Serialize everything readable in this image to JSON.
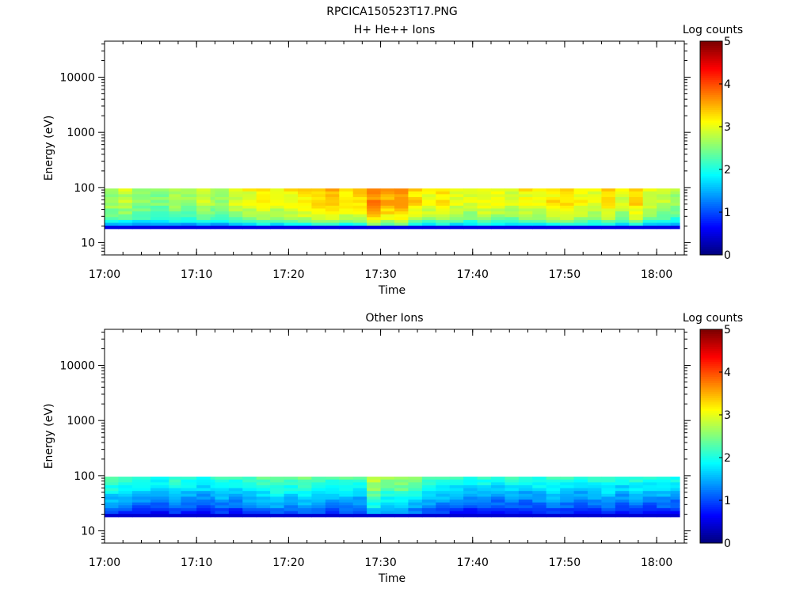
{
  "figure_title": "RPCICA150523T17.PNG",
  "chart_data": [
    {
      "type": "heatmap",
      "title": "H+ He++ Ions",
      "xlabel": "Time",
      "ylabel": "Energy (eV)",
      "x_tick_labels": [
        "17:00",
        "17:10",
        "17:20",
        "17:30",
        "17:40",
        "17:50",
        "18:00"
      ],
      "x_tick_minutes": [
        0,
        10,
        20,
        30,
        40,
        50,
        60
      ],
      "xlim_minutes": [
        0,
        63
      ],
      "yscale": "log",
      "ylim": [
        6,
        45000
      ],
      "y_tick_labels": [
        "10",
        "100",
        "1000",
        "10000"
      ],
      "y_tick_values": [
        10,
        100,
        1000,
        10000
      ],
      "colorbar": {
        "label": "Log counts",
        "min": 0,
        "max": 5,
        "tick_labels": [
          "0",
          "1",
          "2",
          "3",
          "4",
          "5"
        ]
      },
      "band_top_eV": 96,
      "band_bottom_eV": 18,
      "time_columns_minutes": [
        0,
        1.5,
        3,
        5,
        7,
        8.3,
        10,
        11.5,
        12,
        13.5,
        15,
        16.5,
        18,
        19.5,
        21,
        22.5,
        24,
        25.5,
        27,
        28.5,
        30,
        31.5,
        33,
        34.5,
        36,
        37.5,
        39,
        40.5,
        42,
        43.5,
        45,
        46.5,
        48,
        49.5,
        51,
        52.5,
        54,
        55.5,
        57,
        58.5,
        60,
        61.5
      ],
      "energy_rows_eV": [
        96,
        84,
        73,
        64,
        56,
        49,
        43,
        37,
        33,
        29,
        25,
        22,
        20,
        18
      ],
      "column_profile": [
        2.8,
        2.9,
        2.7,
        2.6,
        2.8,
        2.7,
        2.9,
        2.8,
        2.7,
        3.0,
        3.1,
        3.2,
        3.1,
        3.2,
        3.3,
        3.4,
        3.5,
        3.3,
        3.4,
        3.8,
        3.6,
        3.7,
        3.4,
        3.2,
        3.3,
        3.1,
        3.0,
        3.2,
        3.1,
        3.0,
        3.2,
        3.1,
        3.3,
        3.4,
        3.2,
        3.1,
        3.3,
        3.0,
        3.4,
        3.0,
        2.9,
        2.7
      ],
      "energy_profile": [
        0,
        0.1,
        0.15,
        0.1,
        0.05,
        0.1,
        0.2,
        0.3,
        0.35,
        0.45,
        0.6,
        0.9,
        1.3,
        1.8
      ],
      "bottom_row_level": 0.5
    },
    {
      "type": "heatmap",
      "title": "Other Ions",
      "xlabel": "Time",
      "ylabel": "Energy (eV)",
      "x_tick_labels": [
        "17:00",
        "17:10",
        "17:20",
        "17:30",
        "17:40",
        "17:50",
        "18:00"
      ],
      "x_tick_minutes": [
        0,
        10,
        20,
        30,
        40,
        50,
        60
      ],
      "xlim_minutes": [
        0,
        63
      ],
      "yscale": "log",
      "ylim": [
        6,
        45000
      ],
      "y_tick_labels": [
        "10",
        "100",
        "1000",
        "10000"
      ],
      "y_tick_values": [
        10,
        100,
        1000,
        10000
      ],
      "colorbar": {
        "label": "Log counts",
        "min": 0,
        "max": 5,
        "tick_labels": [
          "0",
          "1",
          "2",
          "3",
          "4",
          "5"
        ]
      },
      "band_top_eV": 96,
      "band_bottom_eV": 18,
      "time_columns_minutes": [
        0,
        1.5,
        3,
        5,
        7,
        8.3,
        10,
        11.5,
        12,
        13.5,
        15,
        16.5,
        18,
        19.5,
        21,
        22.5,
        24,
        25.5,
        27,
        28.5,
        30,
        31.5,
        33,
        34.5,
        36,
        37.5,
        39,
        40.5,
        42,
        43.5,
        45,
        46.5,
        48,
        49.5,
        51,
        52.5,
        54,
        55.5,
        57,
        58.5,
        60,
        61.5
      ],
      "energy_rows_eV": [
        96,
        84,
        73,
        64,
        56,
        49,
        43,
        37,
        33,
        29,
        25,
        22,
        20,
        18
      ],
      "column_profile": [
        2.3,
        2.2,
        2.1,
        2.0,
        2.2,
        2.1,
        2.0,
        2.1,
        2.2,
        2.1,
        2.2,
        2.3,
        2.4,
        2.3,
        2.4,
        2.3,
        2.2,
        2.3,
        2.2,
        2.9,
        2.6,
        2.7,
        2.5,
        2.3,
        2.2,
        2.1,
        2.0,
        2.1,
        2.0,
        2.1,
        2.0,
        2.1,
        2.2,
        2.1,
        2.0,
        2.1,
        2.2,
        2.0,
        2.1,
        2.0,
        2.1,
        2.0
      ],
      "energy_profile": [
        0,
        0.1,
        0.2,
        0.3,
        0.35,
        0.5,
        0.6,
        0.7,
        0.8,
        0.9,
        1.0,
        1.2,
        1.3,
        1.5
      ],
      "bottom_row_level": 0.4
    }
  ]
}
